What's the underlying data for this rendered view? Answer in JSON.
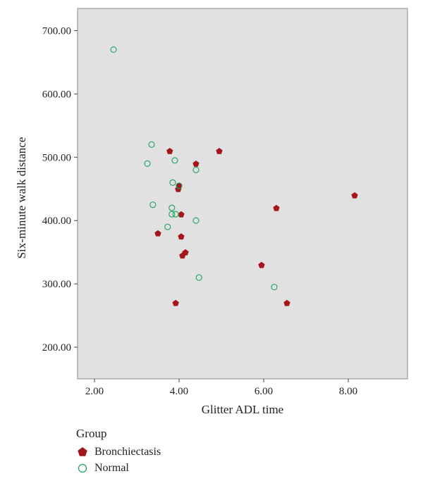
{
  "chart_data": {
    "type": "scatter",
    "title": "",
    "xlabel": "Glitter ADL time",
    "ylabel": "Six-minute walk distance",
    "xlim": [
      1.6,
      9.4
    ],
    "ylim": [
      150,
      735
    ],
    "xticks": [
      2.0,
      4.0,
      6.0,
      8.0
    ],
    "xtick_labels": [
      "2.00",
      "4.00",
      "6.00",
      "8.00"
    ],
    "yticks": [
      200,
      300,
      400,
      500,
      600,
      700
    ],
    "ytick_labels": [
      "200.00",
      "300.00",
      "400.00",
      "500.00",
      "600.00",
      "700.00"
    ],
    "grid": false,
    "legend_position": "bottom-left",
    "legend_title": "Group",
    "series": [
      {
        "name": "Bronchiectasis",
        "marker": "pentagon",
        "color": "#a3161c",
        "points": [
          [
            3.78,
            510
          ],
          [
            4.95,
            510
          ],
          [
            4.4,
            490
          ],
          [
            4.0,
            455
          ],
          [
            3.98,
            450
          ],
          [
            8.15,
            440
          ],
          [
            6.3,
            420
          ],
          [
            4.05,
            410
          ],
          [
            3.5,
            380
          ],
          [
            4.05,
            375
          ],
          [
            4.15,
            350
          ],
          [
            4.08,
            345
          ],
          [
            5.95,
            330
          ],
          [
            3.92,
            270
          ],
          [
            6.55,
            270
          ]
        ]
      },
      {
        "name": "Normal",
        "marker": "circle-open",
        "color": "#1aa35a",
        "points": [
          [
            2.45,
            670
          ],
          [
            3.35,
            520
          ],
          [
            3.9,
            495
          ],
          [
            3.25,
            490
          ],
          [
            4.4,
            480
          ],
          [
            3.85,
            460
          ],
          [
            4.0,
            455
          ],
          [
            3.38,
            425
          ],
          [
            3.83,
            420
          ],
          [
            3.83,
            410
          ],
          [
            3.92,
            410
          ],
          [
            4.4,
            400
          ],
          [
            3.73,
            390
          ],
          [
            4.47,
            310
          ],
          [
            6.25,
            295
          ]
        ]
      }
    ]
  }
}
